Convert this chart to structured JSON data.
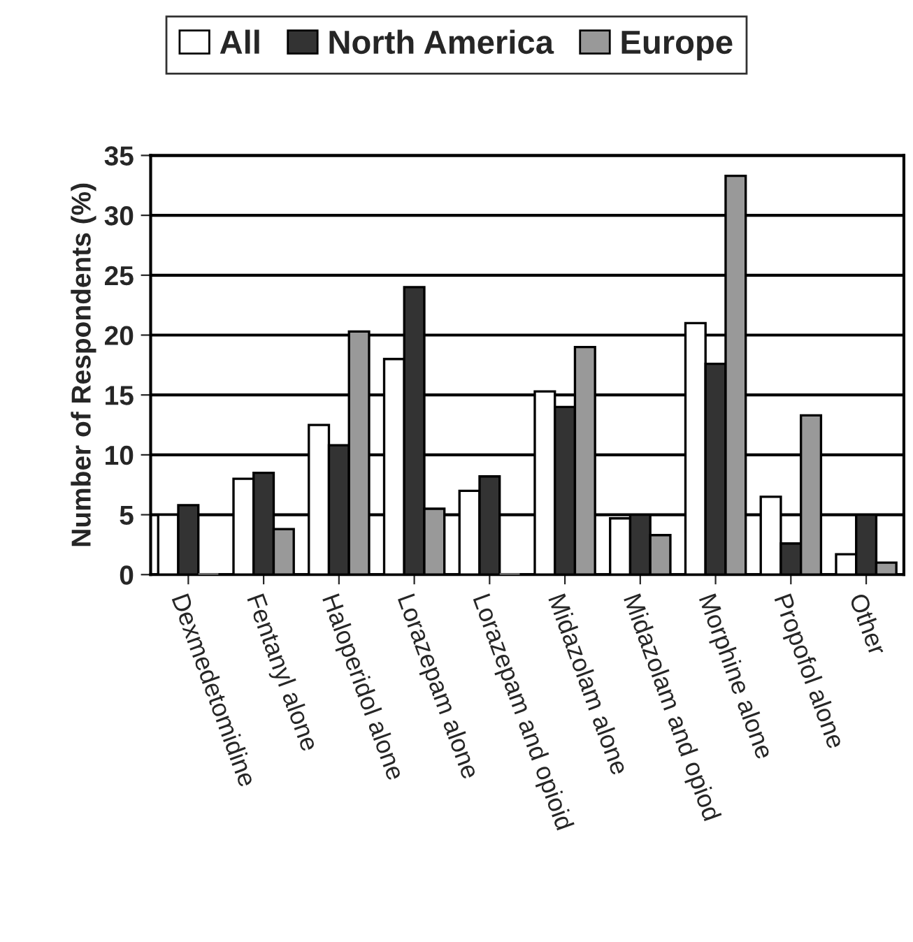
{
  "chart_data": {
    "type": "bar",
    "ylabel": "Number of Respondents (%)",
    "categories": [
      "Dexmedetomidine",
      "Fentanyl alone",
      "Haloperidol alone",
      "Lorazepam alone",
      "Lorazepam and opioid",
      "Midazolam alone",
      "Midazolam and opiod",
      "Morphine alone",
      "Propofol alone",
      "Other"
    ],
    "series": [
      {
        "name": "All",
        "color": "#ffffff",
        "values": [
          5,
          8,
          12.5,
          18,
          7,
          15.3,
          4.7,
          21,
          6.5,
          1.7
        ]
      },
      {
        "name": "North America",
        "color": "#333333",
        "values": [
          5.8,
          8.5,
          10.8,
          24,
          8.2,
          14,
          5,
          17.6,
          2.6,
          5
        ]
      },
      {
        "name": "Europe",
        "color": "#999999",
        "values": [
          0,
          3.8,
          20.3,
          5.5,
          0,
          19,
          3.3,
          33.3,
          13.3,
          1
        ]
      }
    ],
    "ylim": [
      0,
      35
    ],
    "yticks": [
      0,
      5,
      10,
      15,
      20,
      25,
      30,
      35
    ],
    "grid": "y",
    "legend": "top"
  }
}
